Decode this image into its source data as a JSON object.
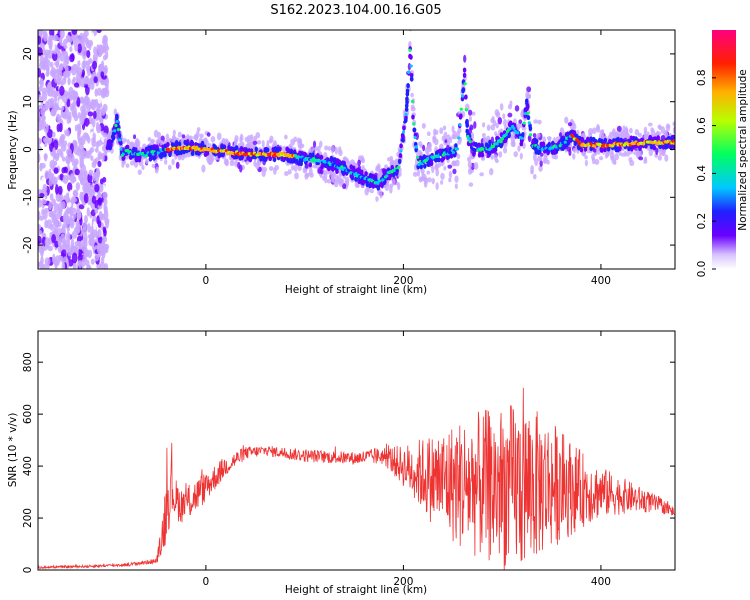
{
  "figure": {
    "title": "S162.2023.104.00.16.G05"
  },
  "chart_data": [
    {
      "type": "heatmap",
      "xlabel": "Height of straight line (km)",
      "ylabel": "Frequency (Hz)",
      "xlim": [
        -170,
        475
      ],
      "ylim": [
        -25,
        25
      ],
      "xticks": [
        0,
        200,
        400
      ],
      "yticks": [
        -20,
        -10,
        0,
        10,
        20
      ],
      "colorbar": {
        "label": "Normalized spectral amplitude",
        "range": [
          0,
          1
        ],
        "ticks": [
          "0.0",
          "0.2",
          "0.4",
          "0.6",
          "0.8"
        ],
        "colormap": [
          "#ffffff",
          "#c8a6ff",
          "#6a00ff",
          "#2020ff",
          "#00c8ff",
          "#00ff60",
          "#b8ff00",
          "#ffb000",
          "#ff2000",
          "#ff0080"
        ]
      },
      "trace": {
        "x": [
          -110,
          -100,
          -95,
          -90,
          -85,
          -80,
          -75,
          -60,
          -40,
          -20,
          0,
          20,
          40,
          60,
          80,
          100,
          120,
          140,
          160,
          175,
          185,
          195,
          203,
          207,
          210,
          215,
          225,
          240,
          255,
          262,
          265,
          270,
          285,
          300,
          310,
          320,
          325,
          330,
          345,
          360,
          370,
          380,
          395,
          410,
          430,
          450,
          475
        ],
        "y": [
          2,
          0,
          2,
          6,
          -1,
          0,
          -1,
          -1,
          0,
          0.5,
          0,
          -0.5,
          -1,
          -1,
          -1,
          -2,
          -2.5,
          -4,
          -6,
          -7,
          -5,
          -4,
          8,
          22,
          6,
          -3,
          -2,
          -1,
          0,
          16,
          3,
          0,
          0,
          2,
          5,
          2,
          10,
          1,
          0,
          1,
          3,
          1,
          1,
          1,
          1.2,
          1.5,
          1.5
        ]
      }
    },
    {
      "type": "line",
      "xlabel": "Height of straight line (km)",
      "ylabel": "SNR (10 * v/v)",
      "xlim": [
        -170,
        475
      ],
      "ylim": [
        0,
        920
      ],
      "xticks": [
        0,
        200,
        400
      ],
      "yticks": [
        0,
        200,
        400,
        600,
        800
      ],
      "series": [
        {
          "color": "#ee3333",
          "x": [
            -170,
            -120,
            -80,
            -50,
            -45,
            -40,
            -35,
            -30,
            -25,
            -15,
            0,
            20,
            40,
            60,
            100,
            150,
            180,
            200,
            230,
            260,
            300,
            320,
            350,
            380,
            400,
            430,
            460,
            475
          ],
          "mean": [
            10,
            14,
            20,
            35,
            110,
            250,
            320,
            270,
            250,
            270,
            320,
            400,
            450,
            460,
            440,
            430,
            440,
            400,
            350,
            330,
            320,
            320,
            330,
            310,
            300,
            280,
            250,
            220
          ],
          "amplitude": [
            4,
            5,
            6,
            10,
            60,
            150,
            110,
            80,
            70,
            70,
            60,
            40,
            25,
            20,
            25,
            25,
            35,
            80,
            180,
            260,
            320,
            330,
            250,
            150,
            100,
            60,
            30,
            20
          ]
        }
      ]
    }
  ]
}
